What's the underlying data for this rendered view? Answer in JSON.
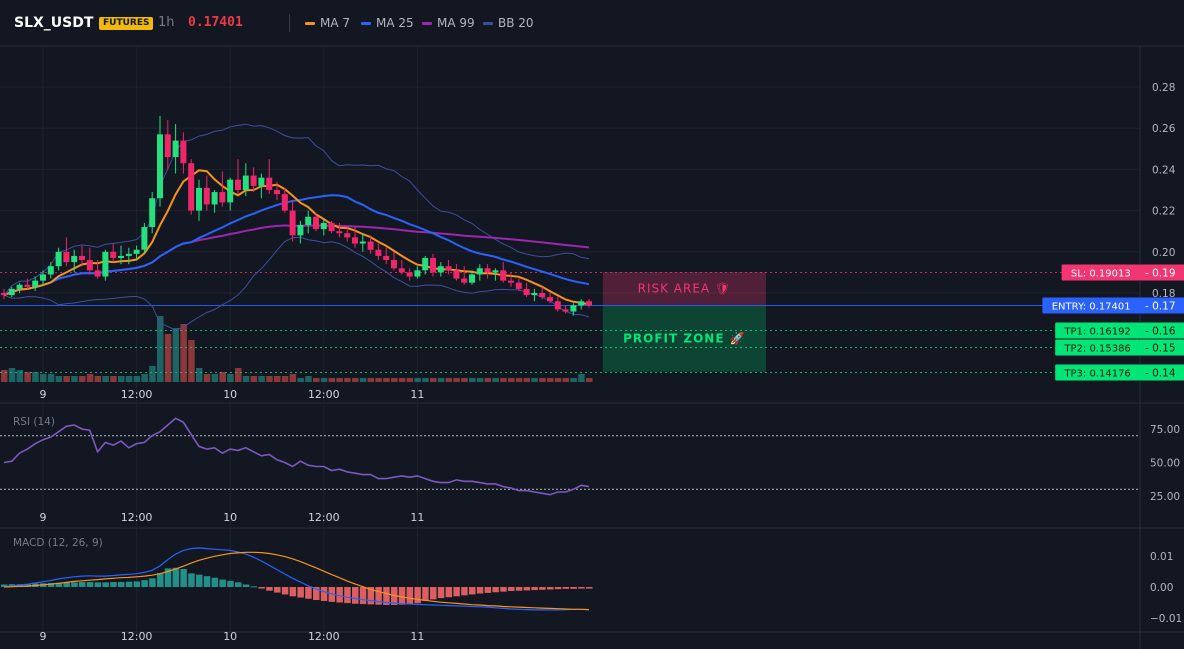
{
  "header": {
    "symbol": "SLX_USDT",
    "badge": "FUTURES",
    "interval": "1h",
    "price": "0.17401",
    "legend": [
      {
        "label": "MA 7",
        "color": "#f7931a"
      },
      {
        "label": "MA 25",
        "color": "#2962ff"
      },
      {
        "label": "MA 99",
        "color": "#9c27b0"
      },
      {
        "label": "BB 20",
        "color": "#3d4f9e"
      }
    ]
  },
  "levels": [
    {
      "label": "SL: 0.19013",
      "value": 0.19013,
      "axis_label": "0.19",
      "color": "#f23672"
    },
    {
      "label": "ENTRY: 0.17401",
      "value": 0.17401,
      "axis_label": "0.17",
      "color": "#2962ff"
    },
    {
      "label": "TP1: 0.16192",
      "value": 0.16192,
      "axis_label": "0.16",
      "color": "#00e676"
    },
    {
      "label": "TP2: 0.15386",
      "value": 0.15386,
      "axis_label": "0.15",
      "color": "#00e676"
    },
    {
      "label": "TP3: 0.14176",
      "value": 0.14176,
      "axis_label": "0.14",
      "color": "#00e676"
    }
  ],
  "zones": {
    "risk_label": "RISK AREA 🛡",
    "profit_label": "PROFIT ZONE 🚀"
  },
  "x_axis": {
    "ticks": [
      {
        "label": "9",
        "t": 9.0
      },
      {
        "label": "12:00",
        "t": 9.5
      },
      {
        "label": "10",
        "t": 10.0
      },
      {
        "label": "12:00",
        "t": 10.5
      },
      {
        "label": "11",
        "t": 11.0
      }
    ]
  },
  "colors": {
    "up": "#26a69a",
    "down": "#ef5350",
    "candle_up": "#26e07f",
    "candle_down": "#f0266a",
    "grid": "#1e222d"
  },
  "chart_data": [
    {
      "type": "candlestick",
      "title": "SLX_USDT",
      "ylim": [
        0.14,
        0.29
      ],
      "y_ticks": [
        0.18,
        0.2,
        0.22,
        0.24,
        0.26,
        0.28
      ],
      "candles": [
        [
          0.18,
          0.182,
          0.177,
          0.179
        ],
        [
          0.179,
          0.183,
          0.178,
          0.182
        ],
        [
          0.182,
          0.185,
          0.18,
          0.184
        ],
        [
          0.184,
          0.187,
          0.182,
          0.183
        ],
        [
          0.183,
          0.188,
          0.181,
          0.186
        ],
        [
          0.186,
          0.191,
          0.184,
          0.189
        ],
        [
          0.189,
          0.195,
          0.187,
          0.193
        ],
        [
          0.193,
          0.202,
          0.191,
          0.2
        ],
        [
          0.2,
          0.207,
          0.193,
          0.195
        ],
        [
          0.195,
          0.201,
          0.19,
          0.198
        ],
        [
          0.198,
          0.203,
          0.193,
          0.196
        ],
        [
          0.196,
          0.202,
          0.189,
          0.191
        ],
        [
          0.191,
          0.196,
          0.187,
          0.188
        ],
        [
          0.188,
          0.201,
          0.186,
          0.2
        ],
        [
          0.2,
          0.204,
          0.195,
          0.197
        ],
        [
          0.197,
          0.203,
          0.194,
          0.198
        ],
        [
          0.198,
          0.202,
          0.194,
          0.199
        ],
        [
          0.199,
          0.203,
          0.196,
          0.201
        ],
        [
          0.201,
          0.214,
          0.199,
          0.212
        ],
        [
          0.212,
          0.229,
          0.209,
          0.226
        ],
        [
          0.226,
          0.266,
          0.222,
          0.257
        ],
        [
          0.257,
          0.264,
          0.24,
          0.246
        ],
        [
          0.246,
          0.262,
          0.238,
          0.254
        ],
        [
          0.254,
          0.258,
          0.238,
          0.243
        ],
        [
          0.243,
          0.245,
          0.218,
          0.22
        ],
        [
          0.22,
          0.235,
          0.215,
          0.231
        ],
        [
          0.231,
          0.237,
          0.22,
          0.223
        ],
        [
          0.223,
          0.23,
          0.219,
          0.229
        ],
        [
          0.229,
          0.239,
          0.222,
          0.224
        ],
        [
          0.224,
          0.236,
          0.22,
          0.235
        ],
        [
          0.235,
          0.245,
          0.228,
          0.23
        ],
        [
          0.23,
          0.243,
          0.227,
          0.237
        ],
        [
          0.237,
          0.241,
          0.229,
          0.232
        ],
        [
          0.232,
          0.238,
          0.226,
          0.236
        ],
        [
          0.236,
          0.245,
          0.228,
          0.23
        ],
        [
          0.23,
          0.234,
          0.225,
          0.228
        ],
        [
          0.228,
          0.231,
          0.219,
          0.22
        ],
        [
          0.22,
          0.225,
          0.205,
          0.208
        ],
        [
          0.208,
          0.215,
          0.204,
          0.213
        ],
        [
          0.213,
          0.22,
          0.209,
          0.217
        ],
        [
          0.217,
          0.219,
          0.21,
          0.211
        ],
        [
          0.211,
          0.216,
          0.208,
          0.214
        ],
        [
          0.214,
          0.215,
          0.209,
          0.21
        ],
        [
          0.21,
          0.214,
          0.207,
          0.209
        ],
        [
          0.209,
          0.212,
          0.205,
          0.207
        ],
        [
          0.207,
          0.212,
          0.202,
          0.204
        ],
        [
          0.204,
          0.209,
          0.2,
          0.205
        ],
        [
          0.205,
          0.208,
          0.199,
          0.201
        ],
        [
          0.201,
          0.204,
          0.196,
          0.198
        ],
        [
          0.198,
          0.202,
          0.194,
          0.196
        ],
        [
          0.196,
          0.2,
          0.191,
          0.192
        ],
        [
          0.192,
          0.196,
          0.189,
          0.19
        ],
        [
          0.19,
          0.192,
          0.186,
          0.188
        ],
        [
          0.188,
          0.193,
          0.187,
          0.191
        ],
        [
          0.191,
          0.198,
          0.189,
          0.197
        ],
        [
          0.197,
          0.199,
          0.188,
          0.19
        ],
        [
          0.19,
          0.195,
          0.188,
          0.193
        ],
        [
          0.193,
          0.196,
          0.189,
          0.191
        ],
        [
          0.191,
          0.194,
          0.186,
          0.187
        ],
        [
          0.187,
          0.193,
          0.184,
          0.185
        ],
        [
          0.185,
          0.191,
          0.184,
          0.189
        ],
        [
          0.189,
          0.194,
          0.186,
          0.192
        ],
        [
          0.192,
          0.194,
          0.187,
          0.19
        ],
        [
          0.19,
          0.192,
          0.186,
          0.191
        ],
        [
          0.191,
          0.195,
          0.185,
          0.186
        ],
        [
          0.186,
          0.19,
          0.183,
          0.185
        ],
        [
          0.185,
          0.187,
          0.181,
          0.182
        ],
        [
          0.182,
          0.185,
          0.178,
          0.179
        ],
        [
          0.179,
          0.182,
          0.176,
          0.18
        ],
        [
          0.18,
          0.183,
          0.177,
          0.178
        ],
        [
          0.178,
          0.18,
          0.175,
          0.176
        ],
        [
          0.176,
          0.178,
          0.171,
          0.172
        ],
        [
          0.172,
          0.174,
          0.17,
          0.171
        ],
        [
          0.171,
          0.175,
          0.169,
          0.174
        ],
        [
          0.174,
          0.177,
          0.172,
          0.176
        ],
        [
          0.176,
          0.177,
          0.173,
          0.174
        ]
      ],
      "volumes": [
        6,
        7,
        6,
        5,
        5,
        4,
        4,
        3,
        3,
        3,
        3,
        4,
        3,
        3,
        3,
        3,
        3,
        3,
        4,
        8,
        33,
        24,
        27,
        29,
        21,
        7,
        4,
        4,
        5,
        4,
        7,
        3,
        3,
        3,
        3,
        3,
        3,
        4,
        2,
        3,
        2,
        2,
        2,
        2,
        2,
        2,
        2,
        2,
        2,
        2,
        2,
        2,
        2,
        2,
        2,
        2,
        2,
        2,
        2,
        2,
        2,
        2,
        2,
        2,
        2,
        2,
        2,
        2,
        2,
        2,
        2,
        2,
        2,
        2,
        4,
        2
      ],
      "volume_max": 35
    },
    {
      "type": "line",
      "title": "RSI (14)",
      "ylim": [
        15,
        90
      ],
      "y_ticks": [
        25,
        50,
        75
      ],
      "y_tick_labels": [
        "25.00",
        "50.00",
        "75.00"
      ],
      "bands": [
        70,
        30
      ],
      "series": [
        {
          "values": [
            50,
            51,
            57,
            60,
            64,
            67,
            69,
            73,
            77,
            78,
            75,
            74,
            58,
            65,
            63,
            66,
            61,
            64,
            65,
            70,
            73,
            78,
            83,
            80,
            71,
            62,
            60,
            61,
            57,
            60,
            59,
            61,
            58,
            55,
            56,
            52,
            50,
            47,
            51,
            48,
            47,
            47,
            44,
            45,
            43,
            42,
            41,
            41,
            38,
            38,
            39,
            40,
            39,
            40,
            38,
            36,
            35,
            35,
            37,
            36,
            36,
            35,
            34,
            34,
            32,
            31,
            29,
            29,
            28,
            27,
            26,
            28,
            28,
            30,
            33,
            32
          ]
        }
      ]
    },
    {
      "type": "bar+line",
      "title": "MACD (12, 26, 9)",
      "ylim": [
        -0.012,
        0.014
      ],
      "y_ticks": [
        -0.01,
        0,
        0.01
      ],
      "y_tick_labels": [
        "−0.01",
        "0.00",
        "0.01"
      ],
      "histogram": [
        0.0008,
        0.0009,
        0.0009,
        0.001,
        0.0011,
        0.0012,
        0.0013,
        0.0014,
        0.0015,
        0.0015,
        0.0016,
        0.0016,
        0.0015,
        0.0015,
        0.0016,
        0.0016,
        0.0017,
        0.0018,
        0.0022,
        0.0028,
        0.0045,
        0.006,
        0.0062,
        0.0058,
        0.0044,
        0.004,
        0.0035,
        0.003,
        0.0024,
        0.002,
        0.0015,
        0.0008,
        0.0002,
        -0.0005,
        -0.0012,
        -0.0018,
        -0.0024,
        -0.003,
        -0.0034,
        -0.0038,
        -0.0042,
        -0.0045,
        -0.0048,
        -0.005,
        -0.0052,
        -0.0054,
        -0.0055,
        -0.0056,
        -0.0057,
        -0.0058,
        -0.0058,
        -0.0057,
        -0.0056,
        -0.0052,
        -0.0045,
        -0.004,
        -0.0036,
        -0.0033,
        -0.003,
        -0.0027,
        -0.0024,
        -0.0021,
        -0.0019,
        -0.0017,
        -0.0015,
        -0.0013,
        -0.0012,
        -0.0011,
        -0.001,
        -0.0009,
        -0.0008,
        -0.0007,
        -0.0006,
        -0.0006,
        -0.0005,
        -0.0005
      ],
      "series": [
        {
          "values": [
            0.0001,
            0.0003,
            0.0006,
            0.0009,
            0.0013,
            0.0017,
            0.0021,
            0.0026,
            0.003,
            0.0033,
            0.0035,
            0.0036,
            0.0035,
            0.0035,
            0.0037,
            0.0039,
            0.0041,
            0.0043,
            0.0047,
            0.0054,
            0.0068,
            0.0088,
            0.0106,
            0.0118,
            0.0124,
            0.0126,
            0.0124,
            0.0122,
            0.012,
            0.0118,
            0.0113,
            0.0106,
            0.0096,
            0.0084,
            0.007,
            0.0056,
            0.0042,
            0.0028,
            0.0016,
            0.0004,
            -0.0006,
            -0.0015,
            -0.0022,
            -0.0028,
            -0.0033,
            -0.0037,
            -0.0041,
            -0.0044,
            -0.0047,
            -0.005,
            -0.0052,
            -0.0054,
            -0.0055,
            -0.0056,
            -0.0057,
            -0.0058,
            -0.0059,
            -0.006,
            -0.0061,
            -0.0062,
            -0.0063,
            -0.0064,
            -0.0065,
            -0.0067,
            -0.0069,
            -0.0071,
            -0.0072,
            -0.0073,
            -0.0074,
            -0.0074,
            -0.0074,
            -0.0074,
            -0.0073,
            -0.0072,
            -0.0072,
            -0.0073
          ],
          "color": "#2962ff"
        },
        {
          "values": [
            0.0,
            0.0001,
            0.0002,
            0.0003,
            0.0005,
            0.0007,
            0.0009,
            0.0012,
            0.0015,
            0.0018,
            0.002,
            0.0022,
            0.0024,
            0.0026,
            0.0028,
            0.003,
            0.0031,
            0.0033,
            0.0035,
            0.0038,
            0.0043,
            0.005,
            0.0058,
            0.0067,
            0.0077,
            0.0086,
            0.0093,
            0.0099,
            0.0104,
            0.0108,
            0.011,
            0.0112,
            0.0112,
            0.0111,
            0.0108,
            0.0104,
            0.0098,
            0.0091,
            0.0082,
            0.0072,
            0.0062,
            0.0051,
            0.004,
            0.003,
            0.0019,
            0.001,
            0.0001,
            -0.0008,
            -0.0015,
            -0.0021,
            -0.0027,
            -0.0032,
            -0.0036,
            -0.004,
            -0.0043,
            -0.0046,
            -0.0049,
            -0.0051,
            -0.0053,
            -0.0055,
            -0.0057,
            -0.0058,
            -0.006,
            -0.0061,
            -0.0063,
            -0.0064,
            -0.0065,
            -0.0066,
            -0.0067,
            -0.0068,
            -0.0069,
            -0.007,
            -0.0071,
            -0.0072,
            -0.0072,
            -0.0073
          ],
          "color": "#f7931a"
        }
      ]
    }
  ]
}
